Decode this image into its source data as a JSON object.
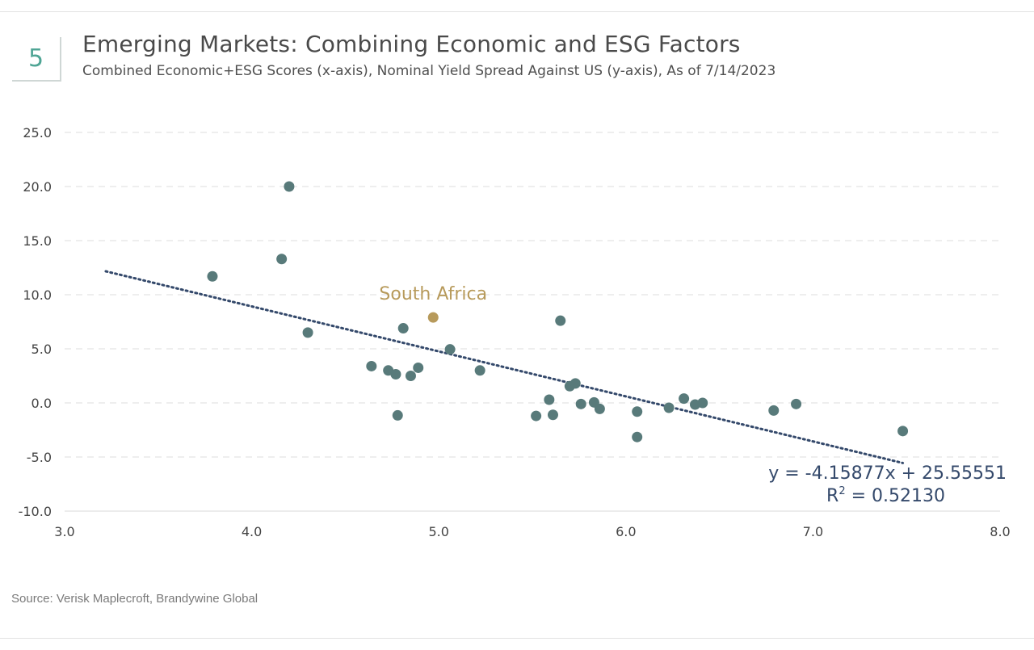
{
  "header": {
    "figure_number": "5",
    "title": "Emerging Markets: Combining Economic and ESG Factors",
    "subtitle": "Combined Economic+ESG Scores (x-axis), Nominal Yield Spread Against US (y-axis), As of 7/14/2023"
  },
  "footer": {
    "source": "Source: Verisk Maplecroft, Brandywine Global"
  },
  "chart_data": {
    "type": "scatter",
    "title": "Emerging Markets: Combining Economic and ESG Factors",
    "xlabel": "Combined Economic+ESG Scores",
    "ylabel": "Nominal Yield Spread Against US",
    "xlim": [
      3.0,
      8.0
    ],
    "ylim": [
      -10.0,
      25.0
    ],
    "x_ticks": [
      "3.0",
      "4.0",
      "5.0",
      "6.0",
      "7.0",
      "8.0"
    ],
    "y_ticks": [
      "25.0",
      "20.0",
      "15.0",
      "10.0",
      "5.0",
      "0.0",
      "-5.0",
      "-10.0"
    ],
    "grid": "horizontal dashed",
    "points": [
      {
        "x": 3.79,
        "y": 11.7
      },
      {
        "x": 4.16,
        "y": 13.3
      },
      {
        "x": 4.2,
        "y": 20.0
      },
      {
        "x": 4.3,
        "y": 6.5
      },
      {
        "x": 4.64,
        "y": 3.4
      },
      {
        "x": 4.73,
        "y": 3.0
      },
      {
        "x": 4.77,
        "y": 2.65
      },
      {
        "x": 4.78,
        "y": -1.15
      },
      {
        "x": 4.81,
        "y": 6.9
      },
      {
        "x": 4.85,
        "y": 2.5
      },
      {
        "x": 4.89,
        "y": 3.25
      },
      {
        "x": 5.06,
        "y": 4.95
      },
      {
        "x": 5.22,
        "y": 3.0
      },
      {
        "x": 5.52,
        "y": -1.2
      },
      {
        "x": 5.59,
        "y": 0.3
      },
      {
        "x": 5.61,
        "y": -1.1
      },
      {
        "x": 5.65,
        "y": 7.6
      },
      {
        "x": 5.7,
        "y": 1.55
      },
      {
        "x": 5.73,
        "y": 1.8
      },
      {
        "x": 5.76,
        "y": -0.1
      },
      {
        "x": 5.83,
        "y": 0.05
      },
      {
        "x": 5.86,
        "y": -0.55
      },
      {
        "x": 6.06,
        "y": -0.8
      },
      {
        "x": 6.06,
        "y": -3.15
      },
      {
        "x": 6.23,
        "y": -0.45
      },
      {
        "x": 6.31,
        "y": 0.4
      },
      {
        "x": 6.37,
        "y": -0.15
      },
      {
        "x": 6.41,
        "y": 0.0
      },
      {
        "x": 6.79,
        "y": -0.7
      },
      {
        "x": 6.91,
        "y": -0.1
      },
      {
        "x": 7.48,
        "y": -2.6
      }
    ],
    "highlight": {
      "label": "South Africa",
      "x": 4.97,
      "y": 7.9,
      "color": "#b79a5b"
    },
    "point_color": "#587a7a",
    "trendline": {
      "slope": -4.15877,
      "intercept": 25.55551,
      "x_range": [
        3.22,
        7.48
      ],
      "color": "#34496b",
      "equation_label": "y = -4.15877x + 25.55551",
      "r_squared_label": "R",
      "r_squared_exponent": "2",
      "r_squared_value": " = 0.52130"
    }
  }
}
